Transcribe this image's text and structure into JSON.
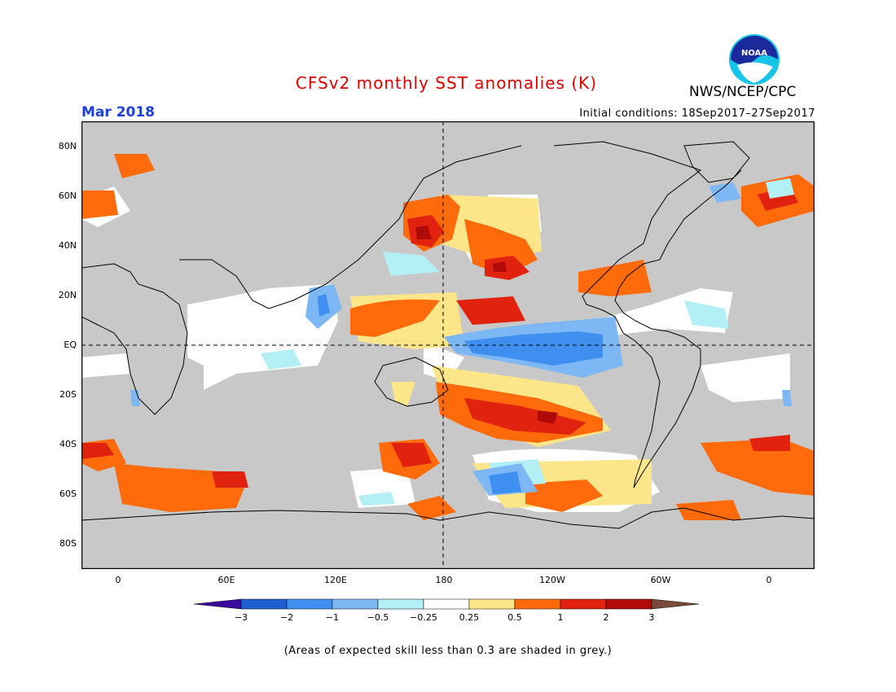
{
  "title": "CFSv2 monthly SST anomalies (K)",
  "agency": "NWS/NCEP/CPC",
  "logo_text": "NOAA",
  "month": "Mar 2018",
  "initial_conditions": "Initial conditions: 18Sep2017–27Sep2017",
  "footer": "(Areas of expected skill less than 0.3 are shaded in grey.)",
  "map": {
    "projection": "equirectangular",
    "longitude_range": [
      -20,
      380
    ],
    "latitude_range": [
      -90,
      90
    ],
    "land_color": "#ffffff",
    "low_skill_color": "#c8c8c8",
    "reference_lines": [
      "equator",
      "dateline"
    ],
    "lat_ticks": [
      "80N",
      "60N",
      "40N",
      "20N",
      "EQ",
      "20S",
      "40S",
      "60S",
      "80S"
    ],
    "lon_ticks": [
      "0",
      "60E",
      "120E",
      "180",
      "120W",
      "60W",
      "0"
    ]
  },
  "colorbar": {
    "labels": [
      "−3",
      "−2",
      "−1",
      "−0.5",
      "−0.25",
      "0.25",
      "0.5",
      "1",
      "2",
      "3"
    ],
    "colors": [
      "#3a0a9c",
      "#1f5fcf",
      "#3f8ff0",
      "#7db8f5",
      "#b3f0f5",
      "#ffffff",
      "#fde58a",
      "#ff6a0a",
      "#e0220e",
      "#b00a0a",
      "#7a4a3a"
    ]
  },
  "anomaly_regions": [
    {
      "name": "central-east equatorial pacific cold tongue",
      "lon": [
        185,
        255
      ],
      "lat": [
        -12,
        4
      ],
      "anomaly": -1
    },
    {
      "name": "far east equatorial pacific",
      "lon": [
        200,
        250
      ],
      "lat": [
        -8,
        0
      ],
      "anomaly": -1.5
    },
    {
      "name": "western tropical pacific warm belt",
      "lon": [
        140,
        195
      ],
      "lat": [
        5,
        18
      ],
      "anomaly": 1
    },
    {
      "name": "north pacific warm center",
      "lon": [
        165,
        182
      ],
      "lat": [
        38,
        52
      ],
      "anomaly": 2
    },
    {
      "name": "north pacific warm patch",
      "lon": [
        200,
        222
      ],
      "lat": [
        25,
        35
      ],
      "anomaly": 1.5
    },
    {
      "name": "south pacific warm band",
      "lon": [
        180,
        250
      ],
      "lat": [
        -38,
        -20
      ],
      "anomaly": 1.5
    },
    {
      "name": "southern ocean cold patch",
      "lon": [
        200,
        235
      ],
      "lat": [
        -62,
        -50
      ],
      "anomaly": -1.5
    },
    {
      "name": "southern ocean warm band",
      "lon": [
        0,
        75
      ],
      "lat": [
        -68,
        -45
      ],
      "anomaly": 1
    },
    {
      "name": "tasman sea warm",
      "lon": [
        150,
        180
      ],
      "lat": [
        -55,
        -40
      ],
      "anomaly": 2
    },
    {
      "name": "north atlantic cold patch",
      "lon": [
        295,
        325
      ],
      "lat": [
        40,
        60
      ],
      "anomaly": -0.5
    },
    {
      "name": "north atlantic warm rim",
      "lon": [
        340,
        360
      ],
      "lat": [
        50,
        65
      ],
      "anomaly": 1.5
    },
    {
      "name": "indian ocean near-normal",
      "lon": [
        45,
        110
      ],
      "lat": [
        -25,
        20
      ],
      "anomaly": 0
    }
  ]
}
